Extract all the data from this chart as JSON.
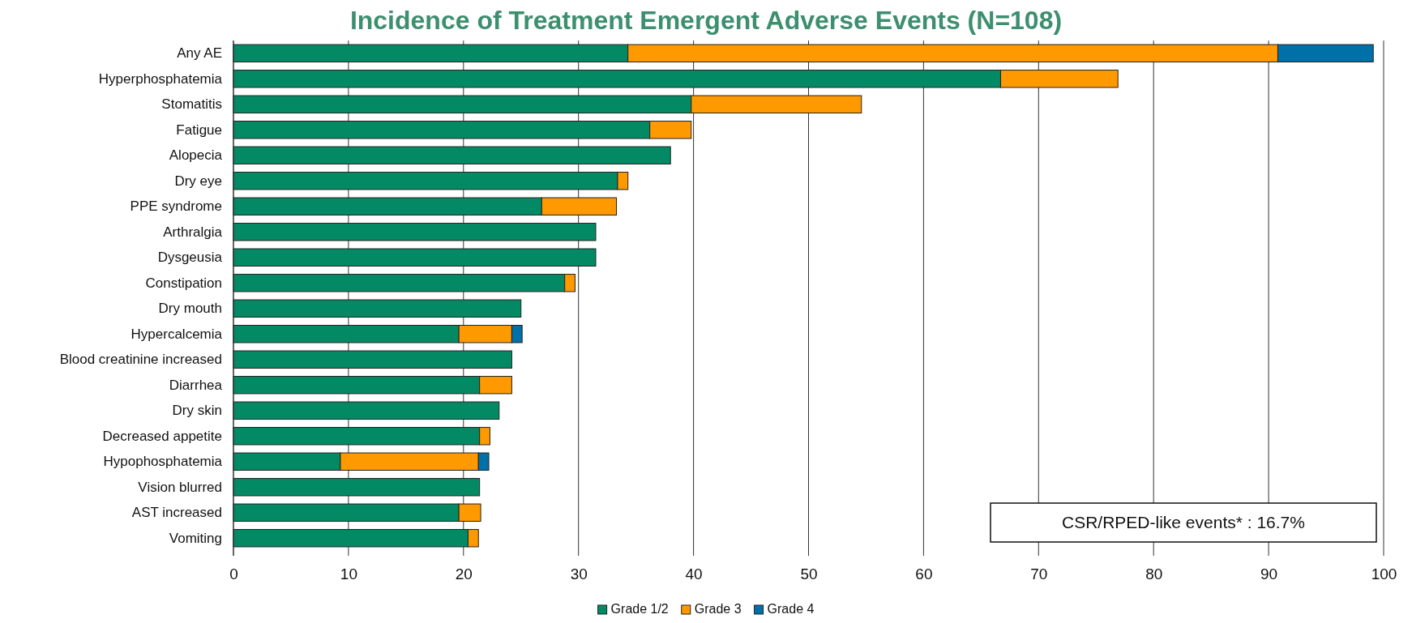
{
  "chart_data": {
    "type": "bar",
    "orientation": "horizontal",
    "stacked": true,
    "title": "Incidence of Treatment Emergent Adverse Events (N=108)",
    "categories": [
      "Any AE",
      "Hyperphosphatemia",
      "Stomatitis",
      "Fatigue",
      "Alopecia",
      "Dry eye",
      "PPE syndrome",
      "Arthralgia",
      "Dysgeusia",
      "Constipation",
      "Dry mouth",
      "Hypercalcemia",
      "Blood creatinine increased",
      "Diarrhea",
      "Dry skin",
      "Decreased appetite",
      "Hypophosphatemia",
      "Vision blurred",
      "AST increased",
      "Vomiting"
    ],
    "series": [
      {
        "name": "Grade 1/2",
        "color": "#038a64",
        "values": [
          34.3,
          66.7,
          39.8,
          36.2,
          38.0,
          33.4,
          26.8,
          31.5,
          31.5,
          28.8,
          25.0,
          19.6,
          24.2,
          21.4,
          23.1,
          21.4,
          9.3,
          21.4,
          19.6,
          20.4
        ]
      },
      {
        "name": "Grade 3",
        "color": "#ff9900",
        "values": [
          56.5,
          10.2,
          14.8,
          3.6,
          null,
          0.9,
          6.5,
          null,
          null,
          0.9,
          null,
          4.6,
          null,
          2.8,
          null,
          0.9,
          12.0,
          null,
          1.9,
          0.9
        ]
      },
      {
        "name": "Grade 4",
        "color": "#0070a8",
        "values": [
          8.3,
          null,
          null,
          null,
          null,
          null,
          null,
          null,
          null,
          null,
          null,
          0.9,
          null,
          null,
          null,
          null,
          0.9,
          null,
          null,
          null
        ]
      }
    ],
    "xlim": [
      0,
      100
    ],
    "xticks": [
      0,
      10,
      20,
      30,
      40,
      50,
      60,
      70,
      80,
      90,
      100
    ],
    "grid": "x",
    "legend": "bottom",
    "annotations": [
      "CSR/RPED-like events* : 16.7%"
    ]
  }
}
